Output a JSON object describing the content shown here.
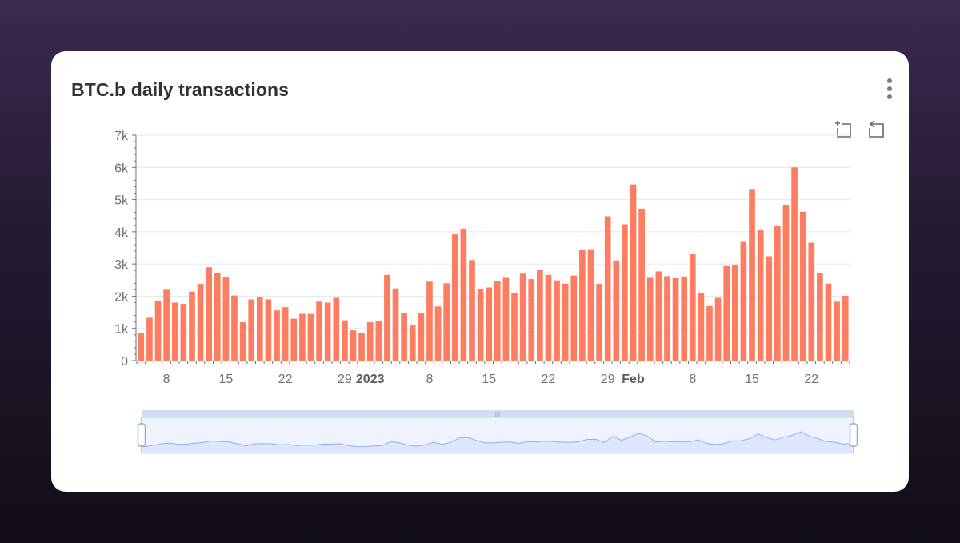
{
  "card": {
    "title": "BTC.b daily transactions"
  },
  "toolbox": {
    "zoom_icon": "zoom-select-icon",
    "restore_icon": "zoom-reset-icon",
    "menu_icon": "kebab-menu-icon"
  },
  "colors": {
    "bar": "#fe7c5f",
    "grid": "#e0e6f1",
    "axis_text": "#6e7079",
    "slider_fill": "#dde6fb",
    "slider_line": "#8fb0f7"
  },
  "chart_data": {
    "type": "bar",
    "title": "BTC.b daily transactions",
    "xlabel": "",
    "ylabel": "",
    "ylim": [
      0,
      7000
    ],
    "yticks": [
      "0",
      "1k",
      "2k",
      "3k",
      "4k",
      "5k",
      "6k",
      "7k"
    ],
    "grid": true,
    "x_start": "2022-12-05",
    "x_tick_labels": [
      {
        "i": 3,
        "label": "8",
        "bold": false
      },
      {
        "i": 10,
        "label": "15",
        "bold": false
      },
      {
        "i": 17,
        "label": "22",
        "bold": false
      },
      {
        "i": 24,
        "label": "29",
        "bold": false
      },
      {
        "i": 27,
        "label": "2023",
        "bold": true
      },
      {
        "i": 34,
        "label": "8",
        "bold": false
      },
      {
        "i": 41,
        "label": "15",
        "bold": false
      },
      {
        "i": 48,
        "label": "22",
        "bold": false
      },
      {
        "i": 55,
        "label": "29",
        "bold": false
      },
      {
        "i": 58,
        "label": "Feb",
        "bold": true
      },
      {
        "i": 65,
        "label": "8",
        "bold": false
      },
      {
        "i": 72,
        "label": "15",
        "bold": false
      },
      {
        "i": 79,
        "label": "22",
        "bold": false
      }
    ],
    "series": [
      {
        "values": [
          850,
          1330,
          1860,
          2200,
          1800,
          1760,
          2140,
          2380,
          2900,
          2710,
          2580,
          2020,
          1190,
          1900,
          1970,
          1900,
          1560,
          1660,
          1300,
          1450,
          1450,
          1830,
          1800,
          1950,
          1250,
          940,
          870,
          1190,
          1240,
          2660,
          2240,
          1480,
          1090,
          1480,
          2450,
          1680,
          2400,
          3920,
          4100,
          3120,
          2220,
          2270,
          2480,
          2570,
          2100,
          2700,
          2530,
          2810,
          2660,
          2490,
          2390,
          2640,
          3430,
          3460,
          2380,
          4480,
          3110,
          4230,
          5470,
          4720,
          2570,
          2770,
          2620,
          2560,
          2610,
          3320,
          2090,
          1690,
          1950,
          2960,
          2980,
          3710,
          5330,
          4050,
          3240,
          4190,
          4840,
          6000,
          4620,
          3660,
          2730,
          2390,
          1830,
          2010
        ]
      }
    ]
  }
}
